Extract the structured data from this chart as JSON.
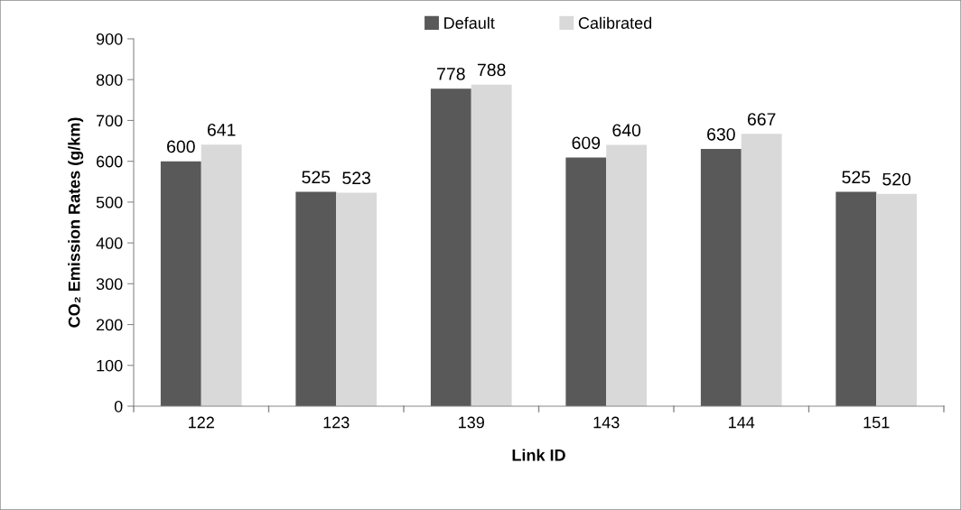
{
  "chart_data": {
    "type": "bar",
    "xlabel": "Link ID",
    "ylabel": "CO₂ Emission Rates (g/km)",
    "categories": [
      "122",
      "123",
      "139",
      "143",
      "144",
      "151"
    ],
    "series": [
      {
        "name": "Default",
        "color": "#595959",
        "values": [
          600,
          525,
          778,
          609,
          630,
          525
        ]
      },
      {
        "name": "Calibrated",
        "color": "#d9d9d9",
        "values": [
          641,
          523,
          788,
          640,
          667,
          520
        ]
      }
    ],
    "ylim": [
      0,
      900
    ],
    "yticks": [
      0,
      100,
      200,
      300,
      400,
      500,
      600,
      700,
      800,
      900
    ],
    "grid": false,
    "legend": "top",
    "data_labels": true
  }
}
